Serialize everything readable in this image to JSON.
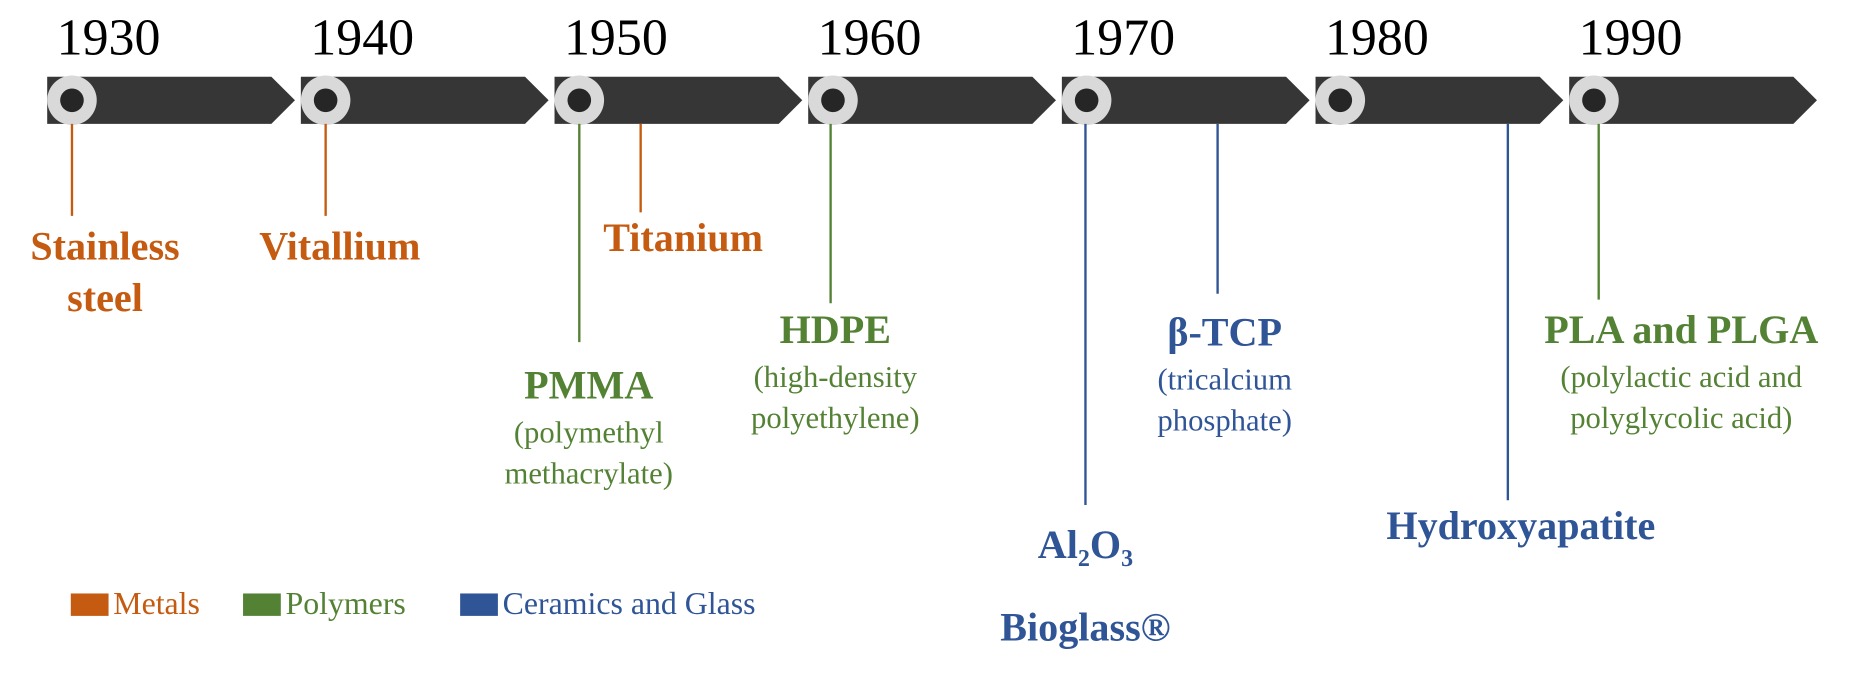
{
  "decades": [
    "1930",
    "1940",
    "1950",
    "1960",
    "1970",
    "1980",
    "1990"
  ],
  "categories": [
    {
      "name": "Metals",
      "color": "#c55a11",
      "items": [
        {
          "label": [
            "Stainless",
            "steel"
          ]
        },
        {
          "label": [
            "Vitallium"
          ]
        },
        {
          "label": [
            "Titanium"
          ]
        }
      ]
    },
    {
      "name": "Polymers",
      "color": "#548235",
      "items": [
        {
          "label": [
            "PMMA"
          ],
          "note": [
            "(polymethyl",
            "methacrylate)"
          ]
        },
        {
          "label": [
            "HDPE"
          ],
          "note": [
            "(high-density",
            "polyethylene)"
          ]
        },
        {
          "label": [
            "PLA and PLGA"
          ],
          "note": [
            "(polylactic acid and",
            "polyglycolic acid)"
          ]
        }
      ]
    },
    {
      "name": "Ceramics and Glass",
      "color": "#2f5597",
      "items": [
        {
          "label": [
            "Al₂O₃"
          ]
        },
        {
          "label": [
            "Bioglass®"
          ]
        },
        {
          "label": [
            "β-TCP"
          ],
          "note": [
            "(tricalcium",
            "phosphate)"
          ]
        },
        {
          "label": [
            "Hydroxyapatite"
          ]
        }
      ]
    }
  ]
}
